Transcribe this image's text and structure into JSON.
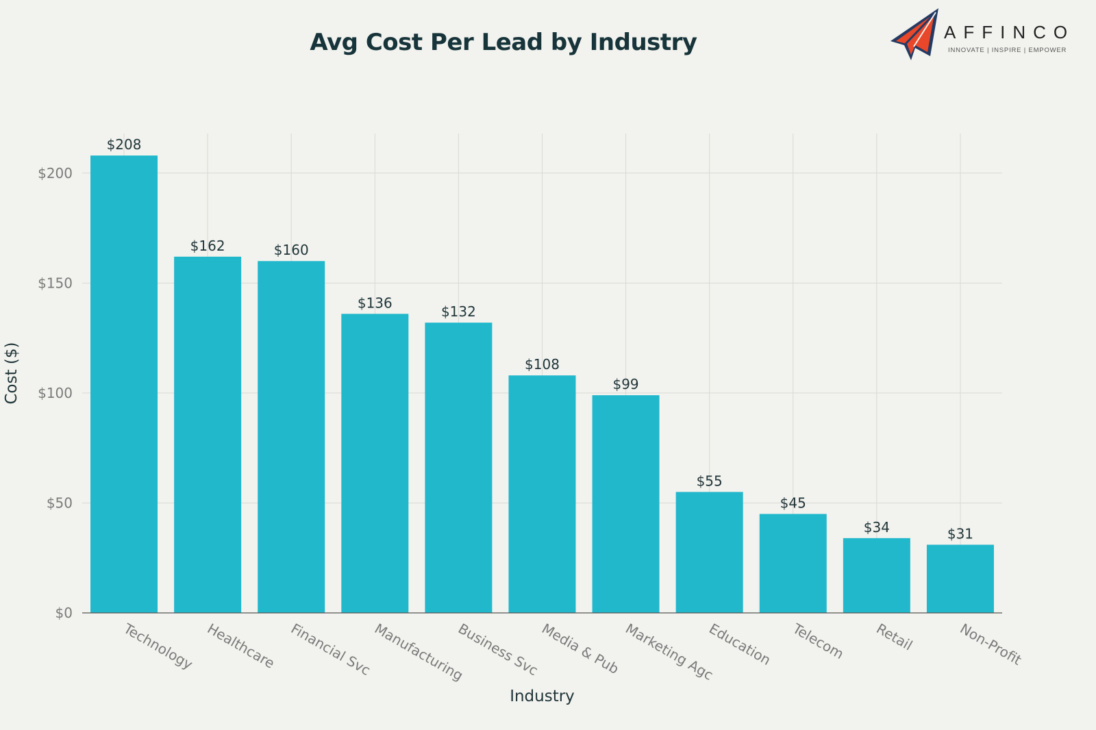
{
  "logo": {
    "name": "AFFINCO",
    "tagline": "INNOVATE | INSPIRE | EMPOWER"
  },
  "chart_data": {
    "type": "bar",
    "title": "Avg Cost Per Lead by Industry",
    "xlabel": "Industry",
    "ylabel": "Cost ($)",
    "categories": [
      "Technology",
      "Healthcare",
      "Financial Svc",
      "Manufacturing",
      "Business Svc",
      "Media & Pub",
      "Marketing Agc",
      "Education",
      "Telecom",
      "Retail",
      "Non-Profit"
    ],
    "values": [
      208,
      162,
      160,
      136,
      132,
      108,
      99,
      55,
      45,
      34,
      31
    ],
    "data_labels": [
      "$208",
      "$162",
      "$160",
      "$136",
      "$132",
      "$108",
      "$99",
      "$55",
      "$45",
      "$34",
      "$31"
    ],
    "yticks": [
      0,
      50,
      100,
      150,
      200
    ],
    "ytick_labels": [
      "$0",
      "$50",
      "$100",
      "$150",
      "$200"
    ],
    "ylim": [
      0,
      218
    ],
    "grid": true,
    "bar_color": "#21b8cc"
  }
}
